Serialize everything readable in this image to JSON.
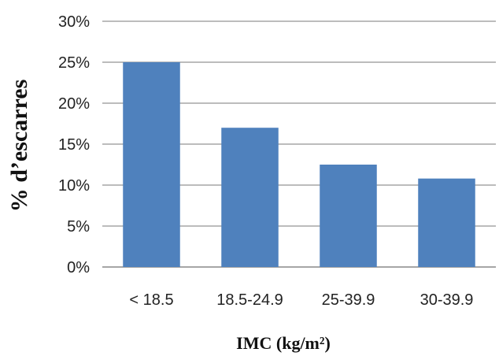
{
  "chart_data": {
    "type": "bar",
    "title": "",
    "xlabel": "IMC (kg/m²)",
    "ylabel": "% d’escarres",
    "categories": [
      "< 18.5",
      "18.5-24.9",
      "25-39.9",
      "30-39.9"
    ],
    "values": [
      25,
      17,
      12.5,
      10.8
    ],
    "ylim": [
      0,
      30
    ],
    "yticks": [
      "0%",
      "5%",
      "10%",
      "15%",
      "20%",
      "25%",
      "30%"
    ],
    "grid": true,
    "legend": "none",
    "bar_color": "#4f81bd",
    "grid_color": "#a6a6a6"
  }
}
